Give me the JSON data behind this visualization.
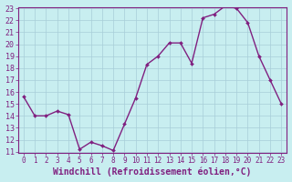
{
  "x": [
    0,
    1,
    2,
    3,
    4,
    5,
    6,
    7,
    8,
    9,
    10,
    11,
    12,
    13,
    14,
    15,
    16,
    17,
    18,
    19,
    20,
    21,
    22,
    23
  ],
  "y": [
    15.6,
    14.0,
    14.0,
    14.4,
    14.1,
    11.2,
    11.8,
    11.5,
    11.1,
    13.3,
    15.5,
    18.3,
    19.0,
    20.1,
    20.1,
    18.4,
    22.2,
    22.5,
    23.2,
    23.0,
    21.8,
    19.0,
    17.0,
    15.0
  ],
  "line_color": "#802080",
  "marker": "D",
  "marker_size": 2.0,
  "bg_color": "#c8eef0",
  "grid_color": "#a8ced8",
  "xlabel": "Windchill (Refroidissement éolien,°C)",
  "ylim": [
    11,
    23
  ],
  "xlim": [
    -0.5,
    23.5
  ],
  "yticks": [
    11,
    12,
    13,
    14,
    15,
    16,
    17,
    18,
    19,
    20,
    21,
    22,
    23
  ],
  "xticks": [
    0,
    1,
    2,
    3,
    4,
    5,
    6,
    7,
    8,
    9,
    10,
    11,
    12,
    13,
    14,
    15,
    16,
    17,
    18,
    19,
    20,
    21,
    22,
    23
  ],
  "tick_fontsize": 5.5,
  "xlabel_fontsize": 7,
  "line_width": 1.0,
  "title_color": "#802080",
  "spine_color": "#802080"
}
